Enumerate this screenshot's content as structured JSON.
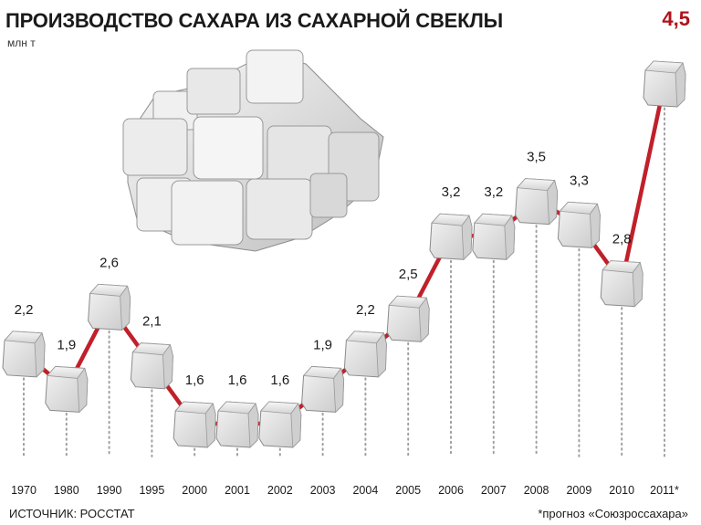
{
  "chart_data": {
    "type": "line",
    "title": "ПРОИЗВОДСТВО САХАРА ИЗ САХАРНОЙ СВЕКЛЫ",
    "ylabel": "млн т",
    "xlabel": "",
    "categories": [
      "1970",
      "1980",
      "1990",
      "1995",
      "2000",
      "2001",
      "2002",
      "2003",
      "2004",
      "2005",
      "2006",
      "2007",
      "2008",
      "2009",
      "2010",
      "2011*"
    ],
    "series": [
      {
        "values": [
          2.2,
          1.9,
          2.6,
          2.1,
          1.6,
          1.6,
          1.6,
          1.9,
          2.2,
          2.5,
          3.2,
          3.2,
          3.5,
          3.3,
          2.8,
          4.5
        ],
        "value_labels": [
          "2,2",
          "1,9",
          "2,6",
          "2,1",
          "1,6",
          "1,6",
          "1,6",
          "1,9",
          "2,2",
          "2,5",
          "3,2",
          "3,2",
          "3,5",
          "3,3",
          "2,8",
          "4,5"
        ]
      }
    ],
    "ylim": [
      1.6,
      4.5
    ],
    "grid": false,
    "marker": "sugar-cube",
    "colors": {
      "line": "#c0202a",
      "highlight": "#b0121c",
      "text": "#1a1a1a",
      "cube": "#efefef",
      "dotted": "#a0a0a0"
    }
  },
  "source": "ИСТОЧНИК: РОССТАТ",
  "footnote": "*прогноз «Союзроссахара»"
}
